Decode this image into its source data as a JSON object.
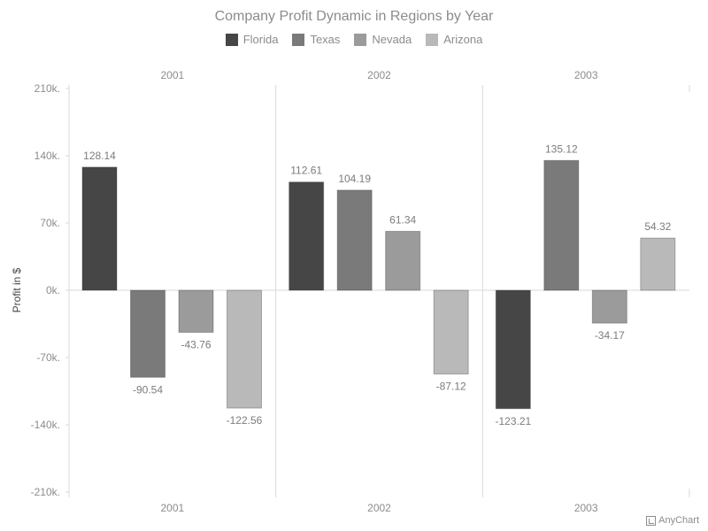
{
  "chart_data": {
    "type": "bar",
    "title": "Company Profit Dynamic in Regions by Year",
    "ylabel": "Profit in $",
    "xlabel": "",
    "categories": [
      "2001",
      "2002",
      "2003"
    ],
    "series": [
      {
        "name": "Florida",
        "color": "#464646",
        "values": [
          128.14,
          112.61,
          -123.21
        ]
      },
      {
        "name": "Texas",
        "color": "#7a7a7a",
        "values": [
          -90.54,
          104.19,
          135.12
        ]
      },
      {
        "name": "Nevada",
        "color": "#9b9b9b",
        "values": [
          -43.76,
          61.34,
          -34.17
        ]
      },
      {
        "name": "Arizona",
        "color": "#b9b9b9",
        "values": [
          -122.56,
          -87.12,
          54.32
        ]
      }
    ],
    "ylim": [
      -210,
      210
    ],
    "yticks": [
      210,
      140,
      70,
      0,
      -70,
      -140,
      -210
    ],
    "ytick_labels": [
      "210k.",
      "140k.",
      "70k.",
      "0k.",
      "-70k.",
      "-140k.",
      "-210k."
    ],
    "legend_position": "top-center",
    "grid": false
  },
  "credits": {
    "label": "AnyChart"
  }
}
